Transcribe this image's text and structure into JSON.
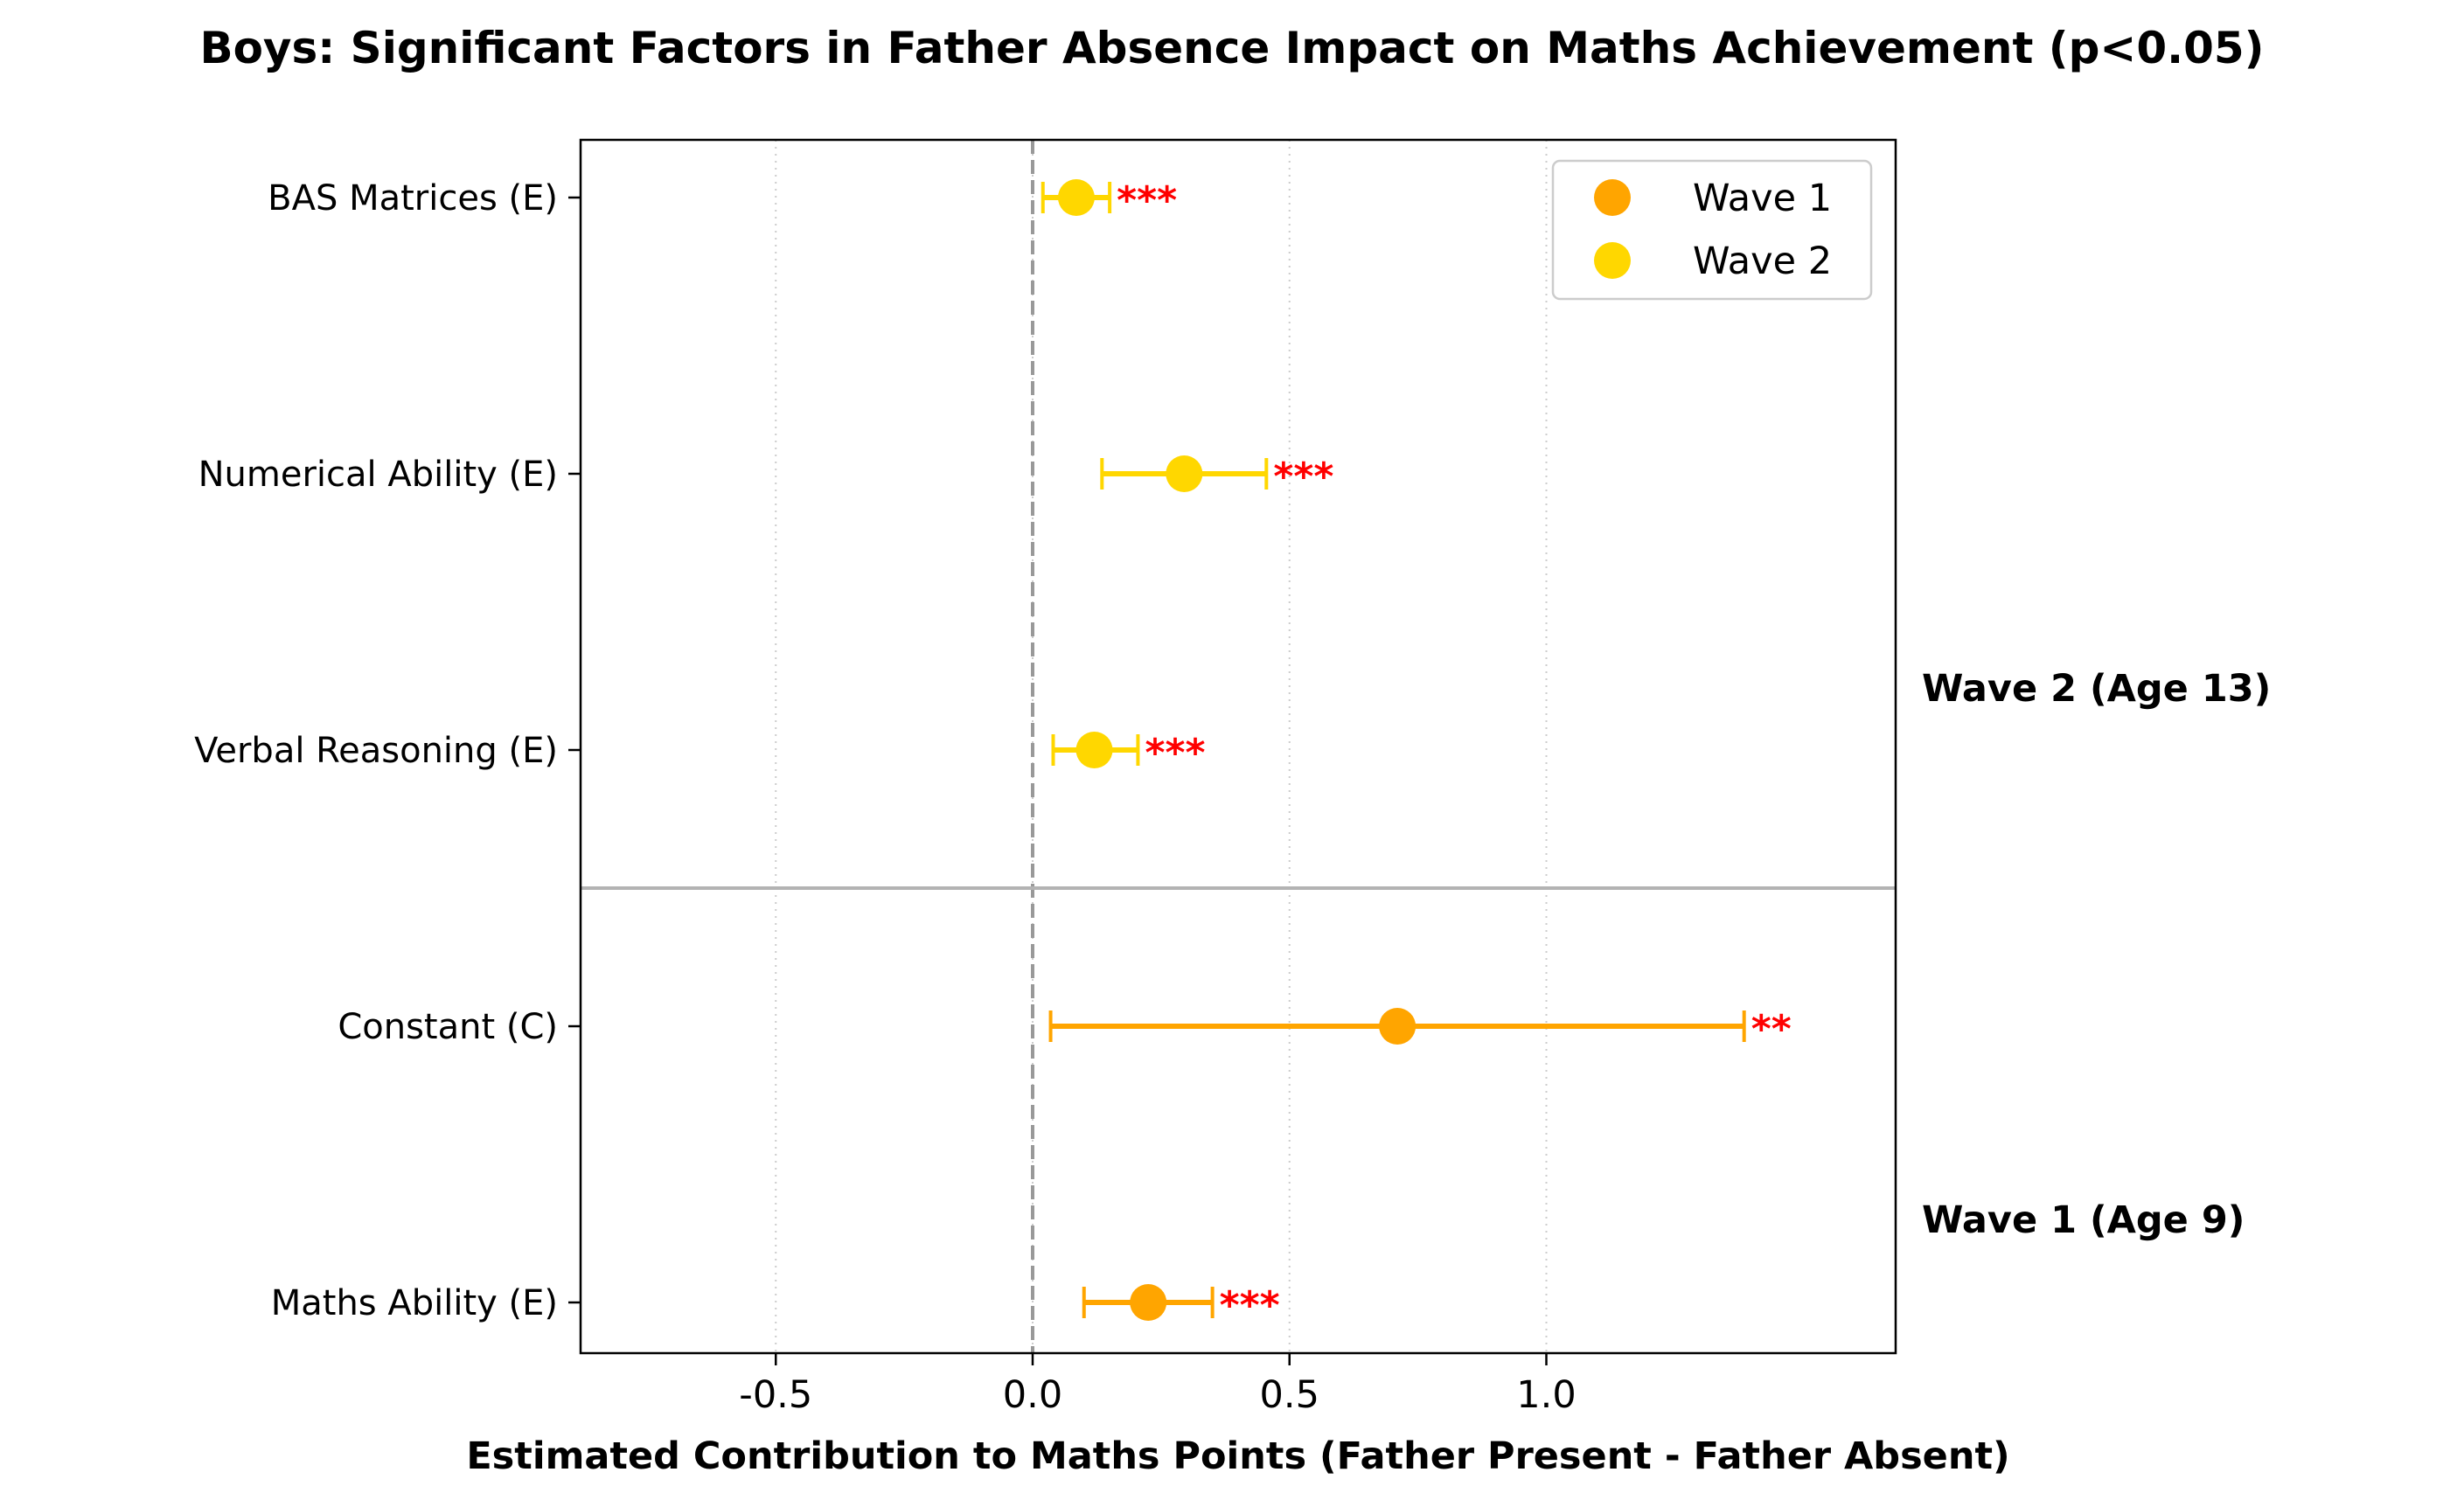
{
  "chart_data": {
    "type": "errorbar",
    "title": "Boys: Significant Factors in Father Absence Impact on Maths Achievement (p<0.05)",
    "xlabel": "Estimated Contribution to Maths Points (Father Present - Father Absent)",
    "xlim": [
      -0.88,
      1.68
    ],
    "xticks": [
      {
        "value": -0.5,
        "label": "-0.5"
      },
      {
        "value": 0.0,
        "label": "0.0"
      },
      {
        "value": 0.5,
        "label": "0.5"
      },
      {
        "value": 1.0,
        "label": "1.0"
      }
    ],
    "grid": "x-dotted",
    "reference_line": {
      "x": 0.0,
      "style": "dashed",
      "color": "#999999"
    },
    "legend": {
      "placement": "top-right",
      "entries": [
        {
          "label": "Wave 1",
          "color": "#FFA500"
        },
        {
          "label": "Wave 2",
          "color": "#FFD700"
        }
      ]
    },
    "groups": [
      {
        "label": "Wave 2 (Age 13)",
        "series": "Wave 2"
      },
      {
        "label": "Wave 1 (Age 9)",
        "series": "Wave 1"
      }
    ],
    "points": [
      {
        "label": "BAS Matrices (E)",
        "series": "Wave 2",
        "estimate": 0.085,
        "ci": [
          0.02,
          0.15
        ],
        "sig": "***"
      },
      {
        "label": "Numerical Ability (E)",
        "series": "Wave 2",
        "estimate": 0.295,
        "ci": [
          0.135,
          0.455
        ],
        "sig": "***"
      },
      {
        "label": "Verbal Reasoning (E)",
        "series": "Wave 2",
        "estimate": 0.12,
        "ci": [
          0.04,
          0.205
        ],
        "sig": "***"
      },
      {
        "label": "Constant (C)",
        "series": "Wave 1",
        "estimate": 0.71,
        "ci": [
          0.035,
          1.385
        ],
        "sig": "**"
      },
      {
        "label": "Maths Ability (E)",
        "series": "Wave 1",
        "estimate": 0.225,
        "ci": [
          0.1,
          0.35
        ],
        "sig": "***"
      }
    ]
  }
}
